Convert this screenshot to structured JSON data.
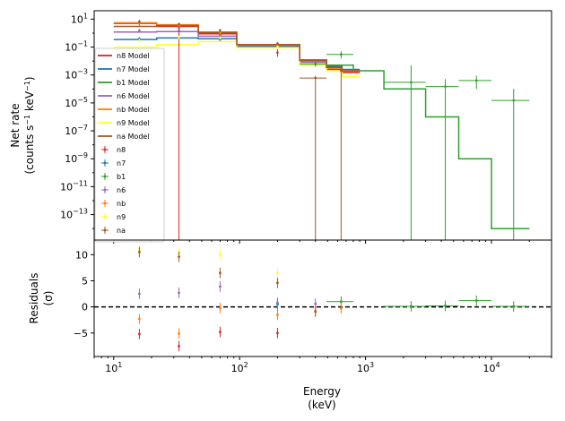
{
  "chart_data": [
    {
      "type": "line",
      "panel": "spectrum",
      "xscale": "log",
      "yscale": "log",
      "xlim": [
        7,
        30000
      ],
      "ylim": [
        1.5e-15,
        40
      ],
      "ylabel_lines": [
        "Net rate",
        "(counts s",
        "−1",
        " keV",
        "−1",
        ")"
      ],
      "xticks": [
        {
          "value": 10,
          "base": "10",
          "exp": "1"
        },
        {
          "value": 100,
          "base": "10",
          "exp": "2"
        },
        {
          "value": 1000,
          "base": "10",
          "exp": "3"
        },
        {
          "value": 10000,
          "base": "10",
          "exp": "4"
        }
      ],
      "yticks": [
        {
          "value": 10,
          "base": "10",
          "exp": "1"
        },
        {
          "value": 0.1,
          "base": "10",
          "exp": "−1"
        },
        {
          "value": 0.001,
          "base": "10",
          "exp": "−3"
        },
        {
          "value": 1e-05,
          "base": "10",
          "exp": "−5"
        },
        {
          "value": 1e-07,
          "base": "10",
          "exp": "−7"
        },
        {
          "value": 1e-09,
          "base": "10",
          "exp": "−9"
        },
        {
          "value": 1e-11,
          "base": "10",
          "exp": "−11"
        },
        {
          "value": 1e-13,
          "base": "10",
          "exp": "−13"
        }
      ],
      "legend_position": "lower-left",
      "models": [
        {
          "name": "n8 Model",
          "color": "#d62728",
          "edges": [
            10,
            22,
            47,
            95,
            300,
            490,
            650,
            900
          ],
          "values": [
            5,
            3,
            0.9,
            0.12,
            0.009,
            0.0025,
            0.0015
          ]
        },
        {
          "name": "n7 Model",
          "color": "#1f77b4",
          "edges": [
            10,
            22,
            47,
            95,
            300,
            490,
            650,
            900
          ],
          "values": [
            0.35,
            0.45,
            0.4,
            0.12,
            0.012,
            0.004,
            0.0025
          ]
        },
        {
          "name": "b1 Model",
          "color": "#2ca02c",
          "edges": [
            300,
            490,
            800,
            1400,
            3000,
            5500,
            10000,
            20000
          ],
          "values": [
            0.009,
            0.005,
            0.002,
            0.0001,
            1e-06,
            1e-09,
            1e-14
          ]
        },
        {
          "name": "n6 Model",
          "color": "#9467bd",
          "edges": [
            10,
            22,
            47,
            95,
            300,
            490,
            650,
            900
          ],
          "values": [
            1.2,
            1.3,
            0.6,
            0.1,
            0.008,
            0.003,
            0.0018
          ]
        },
        {
          "name": "nb Model",
          "color": "#ff7f0e",
          "edges": [
            10,
            22,
            47,
            95,
            300,
            490,
            650,
            900
          ],
          "values": [
            5.5,
            4,
            1.2,
            0.14,
            0.01,
            0.003,
            0.0018
          ]
        },
        {
          "name": "n9 Model",
          "color": "#ffff33",
          "edges": [
            10,
            22,
            47,
            95,
            300,
            490,
            650,
            900
          ],
          "values": [
            0.1,
            0.15,
            0.25,
            0.09,
            0.005,
            0.002,
            0.0008
          ]
        },
        {
          "name": "na Model",
          "color": "#a65628",
          "edges": [
            10,
            22,
            47,
            95,
            300,
            490,
            650,
            900
          ],
          "values": [
            3,
            3.5,
            1.1,
            0.15,
            0.011,
            0.0035,
            0.002
          ]
        }
      ],
      "data": [
        {
          "name": "n8",
          "color": "#d62728",
          "points": [
            {
              "x": 16,
              "y": 6,
              "lo": 3.5,
              "hi": 9
            },
            {
              "x": 33,
              "y": 2.5,
              "lo": 1e-20,
              "hi": 4.5
            },
            {
              "x": 70,
              "y": 0.8,
              "lo": 0.6,
              "hi": 1.1
            },
            {
              "x": 200,
              "y": 0.04,
              "lo": 0.02,
              "hi": 0.07
            }
          ]
        },
        {
          "name": "n7",
          "color": "#1f77b4",
          "points": [
            {
              "x": 16,
              "y": 0.4,
              "lo": 0.3,
              "hi": 0.5
            },
            {
              "x": 33,
              "y": 0.45,
              "lo": 0.35,
              "hi": 0.55
            },
            {
              "x": 70,
              "y": 0.35,
              "lo": 0.28,
              "hi": 0.45
            },
            {
              "x": 200,
              "y": 0.12,
              "lo": 0.09,
              "hi": 0.16
            }
          ]
        },
        {
          "name": "b1",
          "color": "#2ca02c",
          "xerr": true,
          "points": [
            {
              "x": 400,
              "y": 0.006,
              "lo": 0.004,
              "hi": 0.009,
              "xlo": 300,
              "xhi": 490
            },
            {
              "x": 640,
              "y": 0.03,
              "lo": 0.015,
              "hi": 0.05,
              "xlo": 490,
              "xhi": 800
            },
            {
              "x": 2300,
              "y": 0.0003,
              "lo": 1e-20,
              "hi": 0.005,
              "xlo": 1400,
              "xhi": 3000
            },
            {
              "x": 4300,
              "y": 0.00015,
              "lo": 1e-20,
              "hi": 0.0005,
              "xlo": 3000,
              "xhi": 5500
            },
            {
              "x": 7600,
              "y": 0.0004,
              "lo": 0.0001,
              "hi": 0.0009,
              "xlo": 5500,
              "xhi": 10000
            },
            {
              "x": 15000,
              "y": 1.5e-05,
              "lo": 1e-20,
              "hi": 0.0001,
              "xlo": 10000,
              "xhi": 20000
            }
          ]
        },
        {
          "name": "n6",
          "color": "#9467bd",
          "points": [
            {
              "x": 16,
              "y": 1.5,
              "lo": 1.1,
              "hi": 2
            },
            {
              "x": 33,
              "y": 1.6,
              "lo": 1.2,
              "hi": 2.1
            },
            {
              "x": 70,
              "y": 0.6,
              "lo": 0.45,
              "hi": 0.8
            },
            {
              "x": 200,
              "y": 0.11,
              "lo": 0.08,
              "hi": 0.15
            }
          ]
        },
        {
          "name": "nb",
          "color": "#ff7f0e",
          "points": [
            {
              "x": 16,
              "y": 5,
              "lo": 4,
              "hi": 6.5
            },
            {
              "x": 33,
              "y": 3.5,
              "lo": 2.5,
              "hi": 4.5
            },
            {
              "x": 70,
              "y": 1,
              "lo": 0.8,
              "hi": 1.3
            },
            {
              "x": 200,
              "y": 0.12,
              "lo": 0.09,
              "hi": 0.16
            }
          ]
        },
        {
          "name": "n9",
          "color": "#ffff33",
          "points": [
            {
              "x": 16,
              "y": 0.3,
              "lo": 0.2,
              "hi": 0.4
            },
            {
              "x": 33,
              "y": 0.5,
              "lo": 0.35,
              "hi": 0.65
            },
            {
              "x": 70,
              "y": 0.45,
              "lo": 0.35,
              "hi": 0.6
            },
            {
              "x": 200,
              "y": 0.11,
              "lo": 0.08,
              "hi": 0.15
            }
          ]
        },
        {
          "name": "na",
          "color": "#a65628",
          "points": [
            {
              "x": 16,
              "y": 6.5,
              "lo": 5,
              "hi": 8
            },
            {
              "x": 33,
              "y": 4.5,
              "lo": 3.5,
              "hi": 5.5
            },
            {
              "x": 70,
              "y": 1.6,
              "lo": 1.2,
              "hi": 2
            },
            {
              "x": 200,
              "y": 0.18,
              "lo": 0.13,
              "hi": 0.23
            },
            {
              "x": 400,
              "y": 0.0006,
              "lo": 1e-20,
              "hi": 0.0009,
              "xlo": 300,
              "xhi": 490
            },
            {
              "x": 640,
              "y": 0.002,
              "lo": 1e-20,
              "hi": 0.004
            }
          ]
        }
      ]
    },
    {
      "type": "scatter",
      "panel": "residuals",
      "xscale": "log",
      "xlim": [
        7,
        30000
      ],
      "ylim": [
        -9.5,
        12.8
      ],
      "ylabel_lines": [
        "Residuals",
        "(σ)"
      ],
      "xlabel_lines": [
        "Energy",
        "(keV)"
      ],
      "yticks": [
        -5,
        0,
        5,
        10
      ],
      "reference_line": 0,
      "series": [
        {
          "name": "n8",
          "color": "#d62728",
          "points": [
            {
              "x": 16,
              "y": -5.2,
              "err": 1
            },
            {
              "x": 33,
              "y": -7.5,
              "err": 1
            },
            {
              "x": 70,
              "y": -4.8,
              "err": 1
            },
            {
              "x": 200,
              "y": -5.0,
              "err": 1
            }
          ]
        },
        {
          "name": "n7",
          "color": "#1f77b4",
          "points": [
            {
              "x": 200,
              "y": 0.5,
              "err": 1
            }
          ]
        },
        {
          "name": "b1",
          "color": "#2ca02c",
          "points": [
            {
              "x": 640,
              "y": 1.0,
              "err": 1,
              "xlo": 490,
              "xhi": 800
            },
            {
              "x": 2300,
              "y": 0.1,
              "err": 1,
              "xlo": 1400,
              "xhi": 3000
            },
            {
              "x": 4300,
              "y": 0.2,
              "err": 1,
              "xlo": 3000,
              "xhi": 5500
            },
            {
              "x": 7600,
              "y": 1.2,
              "err": 1,
              "xlo": 5500,
              "xhi": 10000
            },
            {
              "x": 15000,
              "y": 0.1,
              "err": 1,
              "xlo": 10000,
              "xhi": 20000
            }
          ]
        },
        {
          "name": "n6",
          "color": "#9467bd",
          "points": [
            {
              "x": 16,
              "y": 2.5,
              "err": 1
            },
            {
              "x": 33,
              "y": 2.7,
              "err": 1
            },
            {
              "x": 70,
              "y": 3.9,
              "err": 1
            },
            {
              "x": 200,
              "y": 0.8,
              "err": 1
            },
            {
              "x": 400,
              "y": 0.6,
              "err": 1
            }
          ]
        },
        {
          "name": "nb",
          "color": "#ff7f0e",
          "points": [
            {
              "x": 16,
              "y": -2.3,
              "err": 1
            },
            {
              "x": 33,
              "y": -5.1,
              "err": 1
            },
            {
              "x": 70,
              "y": -0.2,
              "err": 1
            },
            {
              "x": 200,
              "y": -1.5,
              "err": 1
            },
            {
              "x": 400,
              "y": -0.8,
              "err": 1
            },
            {
              "x": 640,
              "y": -0.3,
              "err": 1
            }
          ]
        },
        {
          "name": "n9",
          "color": "#ffff33",
          "points": [
            {
              "x": 16,
              "y": 11.0,
              "err": 1
            },
            {
              "x": 33,
              "y": 10.3,
              "err": 1
            },
            {
              "x": 70,
              "y": 10.0,
              "err": 1
            },
            {
              "x": 200,
              "y": 6.5,
              "err": 1
            }
          ]
        },
        {
          "name": "na",
          "color": "#a65628",
          "points": [
            {
              "x": 16,
              "y": 10.5,
              "err": 1
            },
            {
              "x": 33,
              "y": 9.6,
              "err": 1
            },
            {
              "x": 70,
              "y": 6.5,
              "err": 1
            },
            {
              "x": 200,
              "y": 4.6,
              "err": 1
            },
            {
              "x": 400,
              "y": -0.9,
              "err": 1
            }
          ]
        }
      ]
    }
  ]
}
